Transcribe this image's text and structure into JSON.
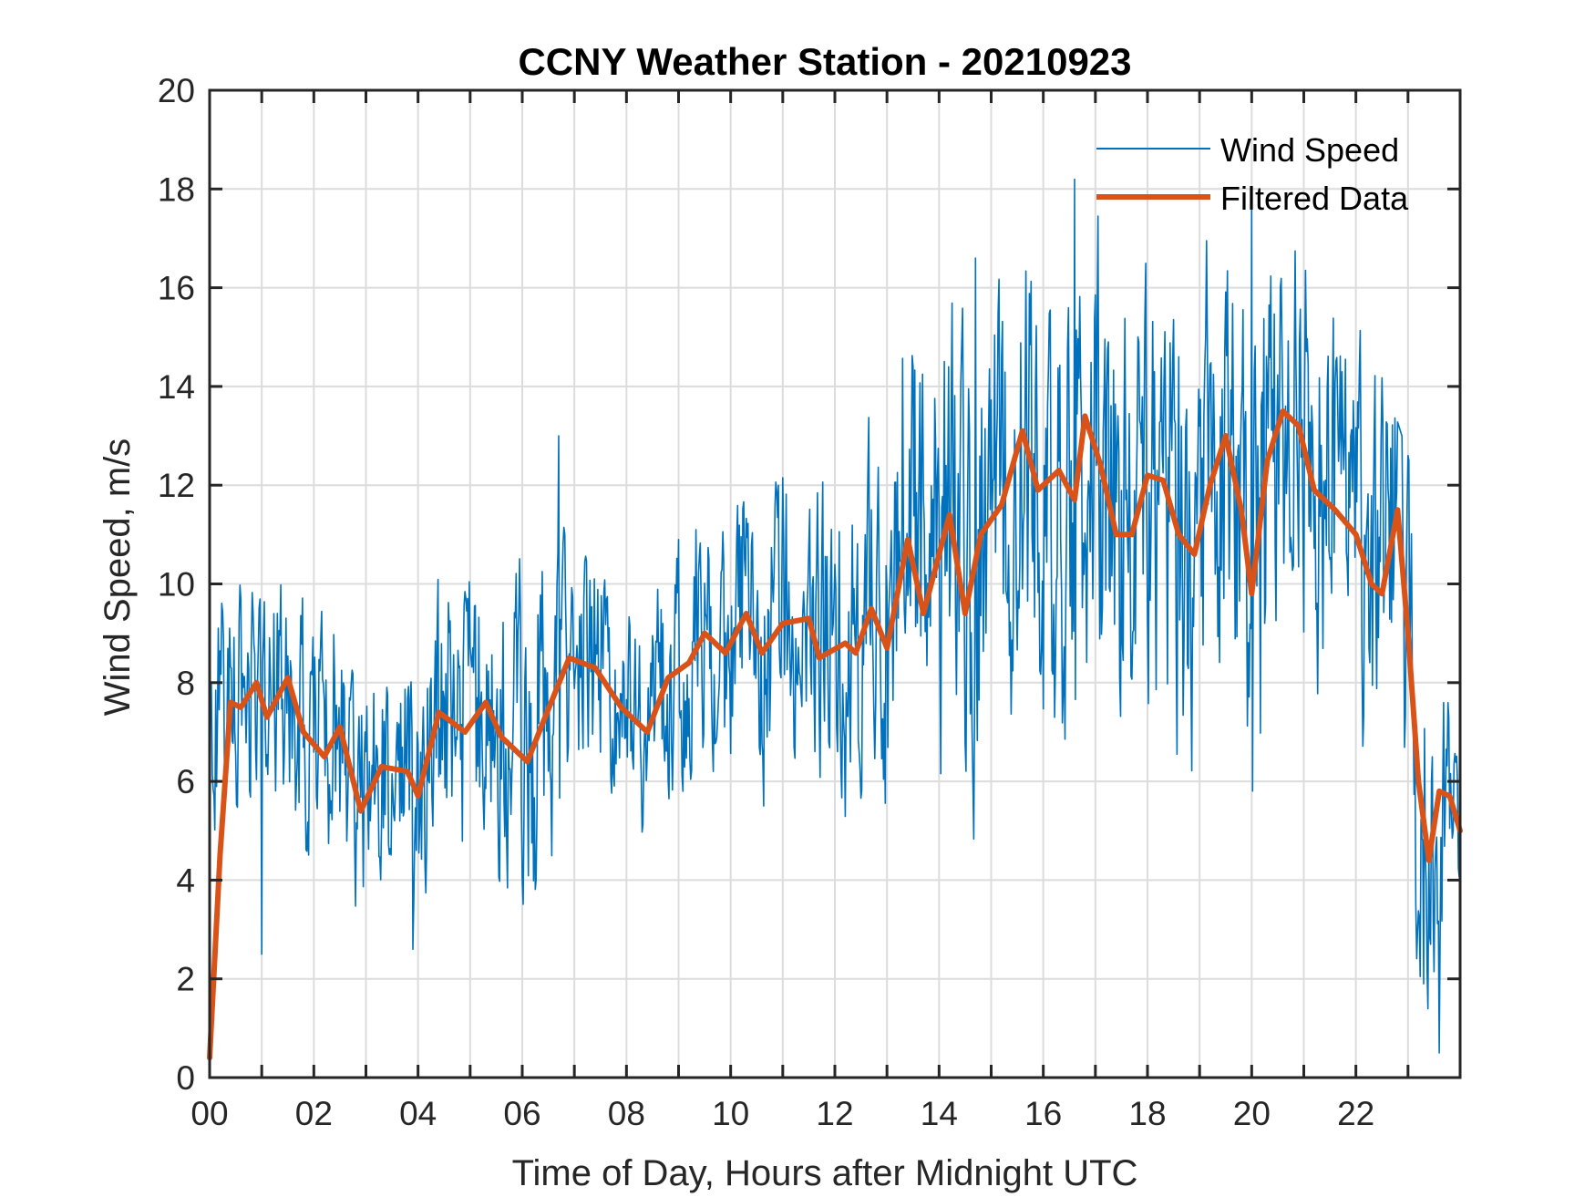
{
  "chart_data": {
    "type": "line",
    "title": "CCNY Weather Station - 20210923",
    "xlabel": "Time of Day, Hours after Midnight UTC",
    "ylabel": "Wind Speed, m/s",
    "xlim": [
      0,
      24
    ],
    "ylim": [
      0,
      20
    ],
    "xticks": [
      0,
      2,
      4,
      6,
      8,
      10,
      12,
      14,
      16,
      18,
      20,
      22
    ],
    "xtick_labels": [
      "00",
      "02",
      "04",
      "06",
      "08",
      "10",
      "12",
      "14",
      "16",
      "18",
      "20",
      "22"
    ],
    "xminor_ticks": [
      1,
      3,
      5,
      7,
      9,
      11,
      13,
      15,
      17,
      19,
      21,
      23
    ],
    "yticks": [
      0,
      2,
      4,
      6,
      8,
      10,
      12,
      14,
      16,
      18,
      20
    ],
    "ytick_labels": [
      "0",
      "2",
      "4",
      "6",
      "8",
      "10",
      "12",
      "14",
      "16",
      "18",
      "20"
    ],
    "grid": true,
    "legend_position": "top-right",
    "colors": {
      "wind_speed": "#0072BD",
      "filtered": "#D95319",
      "axis": "#262626",
      "grid": "#DCDCDC"
    },
    "series": [
      {
        "name": "Wind Speed",
        "role": "raw",
        "note": "High-frequency raw series; envelope approximated by local spread around filtered data",
        "spread": [
          {
            "x": 0,
            "lo": 4.0,
            "hi": 10.5
          },
          {
            "x": 2,
            "lo": 3.8,
            "hi": 10.4
          },
          {
            "x": 4,
            "lo": 2.6,
            "hi": 9.5
          },
          {
            "x": 6,
            "lo": 3.5,
            "hi": 13.0
          },
          {
            "x": 8,
            "lo": 4.8,
            "hi": 10.3
          },
          {
            "x": 10,
            "lo": 4.5,
            "hi": 11.5
          },
          {
            "x": 12,
            "lo": 3.9,
            "hi": 12.8
          },
          {
            "x": 14,
            "lo": 4.5,
            "hi": 16.7
          },
          {
            "x": 16,
            "lo": 5.5,
            "hi": 18.2
          },
          {
            "x": 18,
            "lo": 5.3,
            "hi": 17.4
          },
          {
            "x": 20,
            "lo": 5.8,
            "hi": 17.8
          },
          {
            "x": 22,
            "lo": 6.4,
            "hi": 16.0
          },
          {
            "x": 23,
            "lo": 1.9,
            "hi": 12.6
          },
          {
            "x": 23.5,
            "lo": 0.5,
            "hi": 9.8
          },
          {
            "x": 24,
            "lo": 4.0,
            "hi": 6.8
          }
        ],
        "peaks": [
          {
            "x": 6.7,
            "y": 13.0
          },
          {
            "x": 16.6,
            "y": 18.2
          },
          {
            "x": 13.5,
            "y": 14.4
          },
          {
            "x": 14.7,
            "y": 16.6
          },
          {
            "x": 20.0,
            "y": 17.8
          },
          {
            "x": 23.6,
            "y": 0.5
          },
          {
            "x": 1.0,
            "y": 2.5
          },
          {
            "x": 3.9,
            "y": 2.6
          },
          {
            "x": 23.3,
            "y": 1.9
          }
        ]
      },
      {
        "name": "Filtered Data",
        "role": "filtered",
        "x": [
          0.0,
          0.2,
          0.4,
          0.6,
          0.9,
          1.1,
          1.5,
          1.8,
          2.2,
          2.5,
          2.9,
          3.3,
          3.8,
          4.0,
          4.4,
          4.9,
          5.3,
          5.6,
          6.1,
          6.4,
          6.9,
          7.4,
          7.9,
          8.4,
          8.8,
          9.2,
          9.5,
          9.9,
          10.3,
          10.6,
          11.0,
          11.5,
          11.7,
          12.2,
          12.4,
          12.7,
          13.0,
          13.4,
          13.7,
          14.2,
          14.5,
          14.8,
          15.2,
          15.6,
          15.9,
          16.3,
          16.6,
          16.8,
          17.1,
          17.4,
          17.7,
          18.0,
          18.3,
          18.6,
          18.9,
          19.2,
          19.5,
          19.8,
          20.0,
          20.3,
          20.6,
          20.9,
          21.2,
          21.6,
          22.0,
          22.3,
          22.5,
          22.8,
          23.0,
          23.2,
          23.4,
          23.6,
          23.8,
          24.0
        ],
        "y": [
          0.4,
          4.5,
          7.6,
          7.5,
          8.0,
          7.3,
          8.1,
          7.0,
          6.5,
          7.1,
          5.4,
          6.3,
          6.2,
          5.7,
          7.4,
          7.0,
          7.6,
          6.9,
          6.4,
          7.2,
          8.5,
          8.3,
          7.5,
          7.0,
          8.1,
          8.4,
          9.0,
          8.6,
          9.4,
          8.6,
          9.2,
          9.3,
          8.5,
          8.8,
          8.6,
          9.5,
          8.7,
          10.9,
          9.4,
          11.4,
          9.4,
          11.0,
          11.6,
          13.1,
          11.9,
          12.3,
          11.7,
          13.4,
          12.4,
          11.0,
          11.0,
          12.2,
          12.1,
          11.0,
          10.6,
          12.0,
          13.0,
          11.5,
          9.8,
          12.5,
          13.5,
          13.2,
          11.9,
          11.5,
          11.0,
          10.0,
          9.8,
          11.5,
          9.0,
          6.0,
          4.4,
          5.8,
          5.7,
          5.0
        ]
      }
    ],
    "legend": [
      {
        "label": "Wind Speed",
        "series": "Wind Speed"
      },
      {
        "label": "Filtered Data",
        "series": "Filtered Data"
      }
    ]
  }
}
